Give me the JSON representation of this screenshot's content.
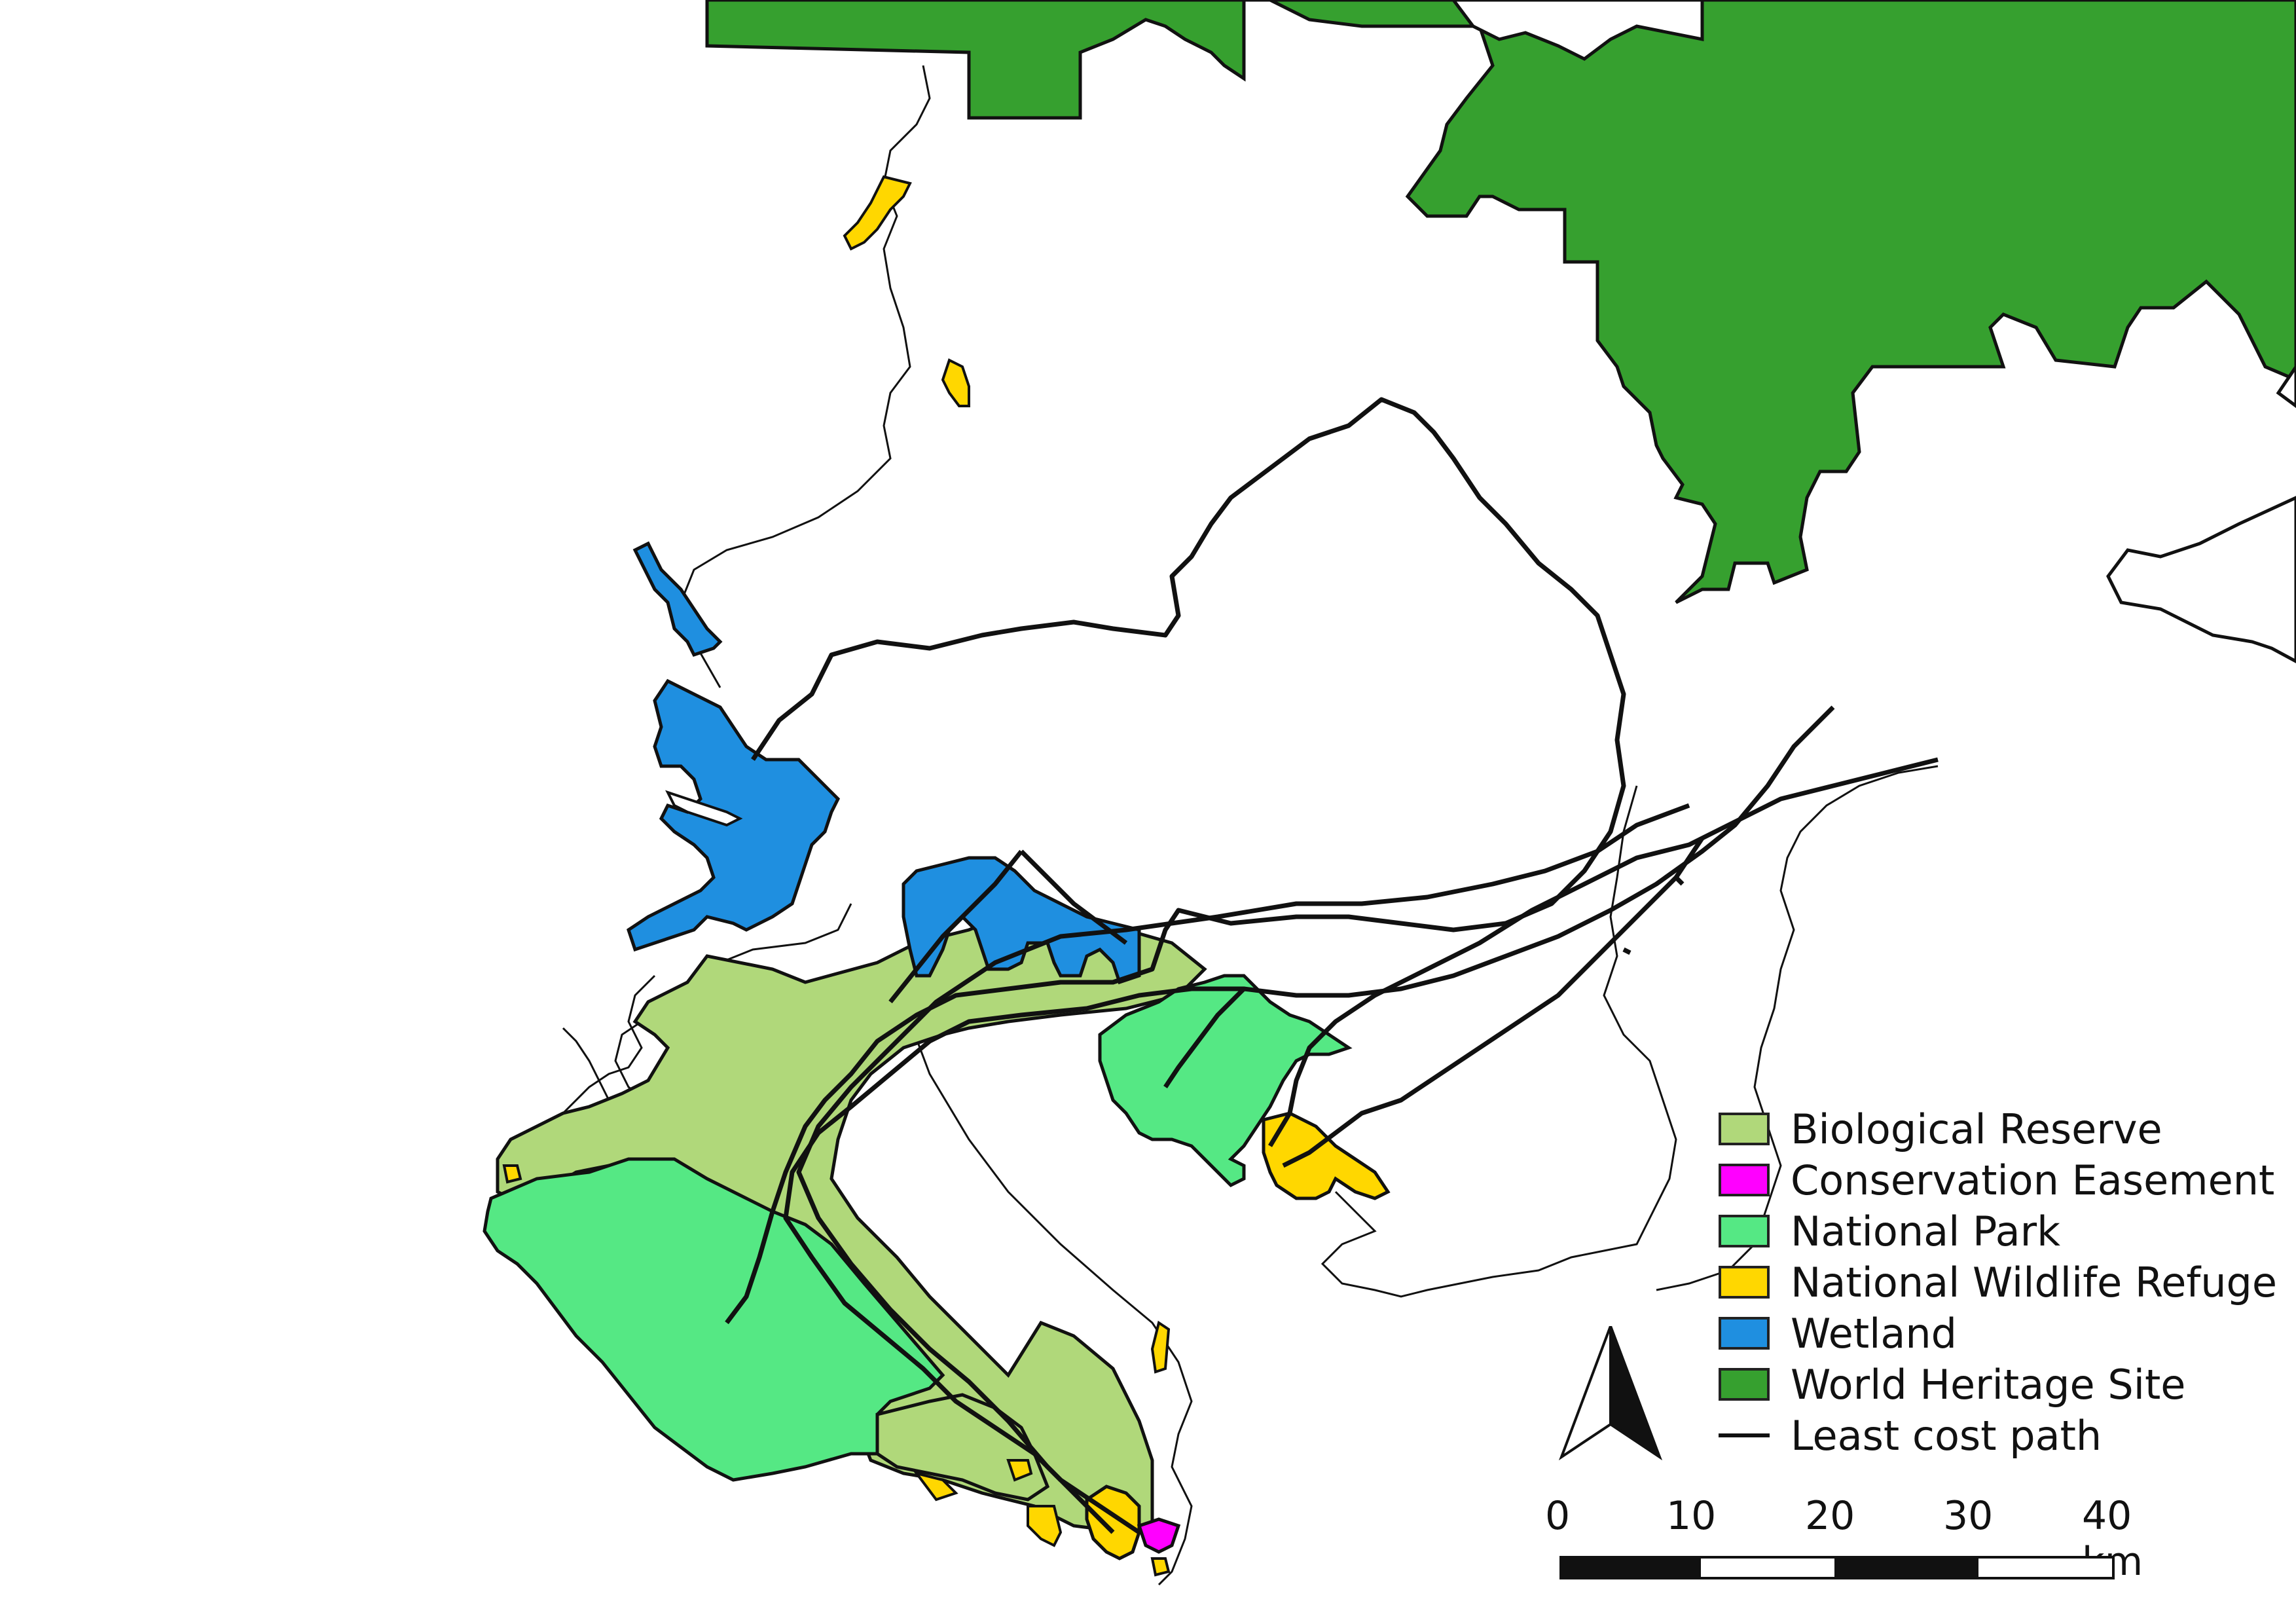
{
  "map": {
    "colors": {
      "biological_reserve": "#b0d87a",
      "conservation_easement": "#ff00ff",
      "national_park": "#55e884",
      "national_wildlife_refuge": "#ffd700",
      "wetland": "#1f8fe0",
      "world_heritage_site": "#36a02f",
      "least_cost_path": "#111111"
    }
  },
  "legend": {
    "items": [
      {
        "label": "Biological Reserve",
        "color": "#b0d87a",
        "kind": "fill"
      },
      {
        "label": "Conservation Easement",
        "color": "#ff00ff",
        "kind": "fill"
      },
      {
        "label": "National Park",
        "color": "#55e884",
        "kind": "fill"
      },
      {
        "label": "National Wildlife Refuge",
        "color": "#ffd700",
        "kind": "fill"
      },
      {
        "label": "Wetland",
        "color": "#1f8fe0",
        "kind": "fill"
      },
      {
        "label": "World Heritage Site",
        "color": "#36a02f",
        "kind": "fill"
      },
      {
        "label": "Least cost path",
        "color": "#111111",
        "kind": "line"
      }
    ]
  },
  "scale_bar": {
    "ticks": [
      "0",
      "10",
      "20",
      "30",
      "40 km"
    ]
  },
  "north_arrow": {
    "icon": "north-arrow-icon"
  }
}
